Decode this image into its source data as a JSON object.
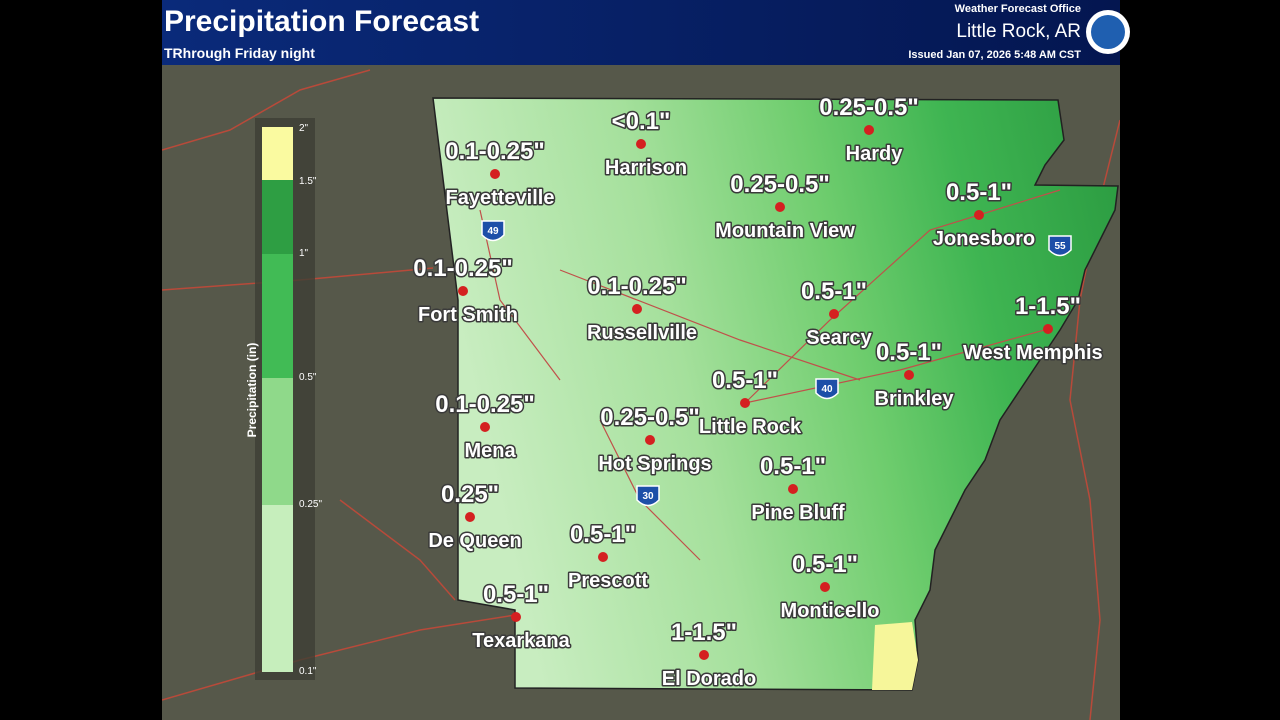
{
  "header": {
    "title": "Precipitation Forecast",
    "subtitle": "TRhrough Friday night",
    "office": "Weather Forecast Office",
    "location": "Little Rock, AR",
    "issued": "Issued Jan 07, 2026 5:48 AM CST"
  },
  "legend": {
    "axis_label": "Precipitation (in)",
    "ticks": [
      "2\"",
      "1.5\"",
      "1\"",
      "0.5\"",
      "0.25\"",
      "0.1\""
    ]
  },
  "cities": [
    {
      "name": "Fayetteville",
      "amount": "0.1-0.25\""
    },
    {
      "name": "Harrison",
      "amount": "<0.1\""
    },
    {
      "name": "Hardy",
      "amount": "0.25-0.5\""
    },
    {
      "name": "Mountain View",
      "amount": "0.25-0.5\""
    },
    {
      "name": "Jonesboro",
      "amount": "0.5-1\""
    },
    {
      "name": "Fort Smith",
      "amount": "0.1-0.25\""
    },
    {
      "name": "Russellville",
      "amount": "0.1-0.25\""
    },
    {
      "name": "Searcy",
      "amount": "0.5-1\""
    },
    {
      "name": "West Memphis",
      "amount": "1-1.5\""
    },
    {
      "name": "Brinkley",
      "amount": "0.5-1\""
    },
    {
      "name": "Little Rock",
      "amount": "0.5-1\""
    },
    {
      "name": "Mena",
      "amount": "0.1-0.25\""
    },
    {
      "name": "Hot Springs",
      "amount": "0.25-0.5\""
    },
    {
      "name": "Pine Bluff",
      "amount": "0.5-1\""
    },
    {
      "name": "De Queen",
      "amount": "0.25\""
    },
    {
      "name": "Prescott",
      "amount": "0.5-1\""
    },
    {
      "name": "Monticello",
      "amount": "0.5-1\""
    },
    {
      "name": "Texarkana",
      "amount": "0.5-1\""
    },
    {
      "name": "El Dorado",
      "amount": "1-1.5\""
    }
  ],
  "interstates": [
    "49",
    "55",
    "40",
    "30"
  ]
}
